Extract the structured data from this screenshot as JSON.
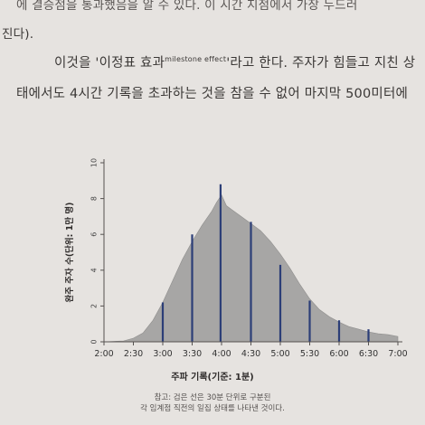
{
  "text": {
    "line_cut": "에 결승점을 통과했음을 알 수 있다. 이 시간 지점에서 가장 두드러",
    "line_2": "진다).",
    "line_3_part1": "이것을 '이정표 효과",
    "line_3_sup": "milestone effect",
    "line_3_part2": "'라고 한다. 주자가 힘들고 지친 상",
    "line_4": "태에서도 4시간 기록을 초과하는 것을 참을 수 없어 마지막 500미터에"
  },
  "chart_data": {
    "type": "area",
    "ylabel": "완주 주자 수(단위: 1만 명)",
    "xlabel": "주파 기록(기준: 1분)",
    "x_ticks": [
      "2:00",
      "2:30",
      "3:00",
      "3:30",
      "4:00",
      "4:30",
      "5:00",
      "5:30",
      "6:00",
      "6:30",
      "7:00"
    ],
    "x_minutes": [
      120,
      150,
      180,
      210,
      240,
      270,
      300,
      330,
      360,
      390,
      420
    ],
    "y_ticks": [
      0,
      2,
      4,
      6,
      8,
      10
    ],
    "ylim": [
      0,
      10
    ],
    "xlim": [
      120,
      420
    ],
    "distribution": {
      "x": [
        120,
        140,
        150,
        160,
        170,
        180,
        190,
        200,
        210,
        220,
        230,
        235,
        240,
        245,
        250,
        260,
        270,
        280,
        290,
        300,
        310,
        320,
        330,
        340,
        350,
        360,
        370,
        380,
        390,
        400,
        410,
        420
      ],
      "y": [
        0,
        0.05,
        0.2,
        0.5,
        1.2,
        2.2,
        3.4,
        4.6,
        5.6,
        6.5,
        7.3,
        7.8,
        8.2,
        7.6,
        7.4,
        7.0,
        6.6,
        6.2,
        5.6,
        4.9,
        4.1,
        3.2,
        2.4,
        1.8,
        1.4,
        1.1,
        0.85,
        0.7,
        0.55,
        0.45,
        0.4,
        0.3
      ]
    },
    "spikes": [
      {
        "x": 180,
        "y": 2.2
      },
      {
        "x": 210,
        "y": 6.0
      },
      {
        "x": 239,
        "y": 8.8
      },
      {
        "x": 270,
        "y": 6.7
      },
      {
        "x": 300,
        "y": 4.3
      },
      {
        "x": 330,
        "y": 2.3
      },
      {
        "x": 360,
        "y": 1.2
      },
      {
        "x": 390,
        "y": 0.7
      }
    ],
    "colors": {
      "fill": "#a7a6a5",
      "spike": "#2c3e77",
      "axis": "#555250"
    }
  },
  "notes": {
    "line1": "참고: 검은 선은 30분 단위로 구분된",
    "line2": "각 임계점 직전의 일집 상태를 나타낸 것이다."
  }
}
